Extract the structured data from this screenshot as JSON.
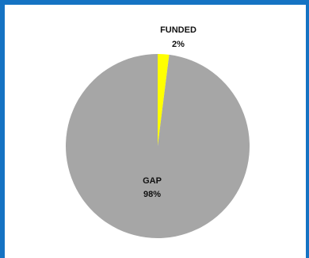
{
  "colors": {
    "border": "#1573c3",
    "background": "#ffffff",
    "gap": "#a6a6a6",
    "funded": "#ffff00"
  },
  "chart_data": {
    "type": "pie",
    "title": "",
    "slices": [
      {
        "label": "FUNDED",
        "value_label": "2%",
        "value": 2,
        "color": "#ffff00"
      },
      {
        "label": "GAP",
        "value_label": "98%",
        "value": 98,
        "color": "#a6a6a6"
      }
    ]
  }
}
